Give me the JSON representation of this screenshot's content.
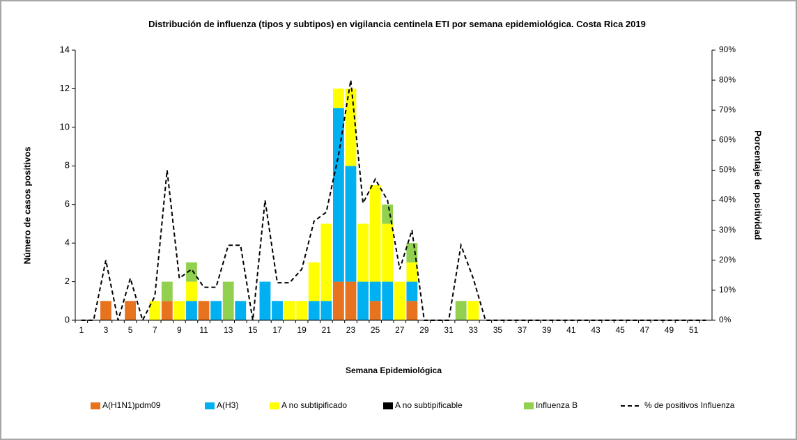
{
  "chart_data": {
    "type": "bar",
    "stacked": true,
    "title": "Distribución de influenza (tipos y subtipos) en vigilancia centinela ETI por semana epidemiológica. Costa Rica 2019",
    "x_label": "Semana Epidemiológica",
    "y_label": "Número de casos positivos",
    "y2_label": "Porcentaje de positividad",
    "categories": [
      1,
      null,
      3,
      null,
      5,
      null,
      7,
      null,
      9,
      null,
      11,
      null,
      13,
      null,
      15,
      null,
      17,
      null,
      19,
      null,
      21,
      null,
      23,
      null,
      25,
      null,
      27,
      null,
      29,
      null,
      31,
      null,
      33,
      null,
      35,
      null,
      37,
      null,
      39,
      null,
      41,
      null,
      43,
      null,
      45,
      null,
      47,
      null,
      49,
      null,
      51,
      null
    ],
    "ylim": [
      0,
      14
    ],
    "yticks": [
      0,
      2,
      4,
      6,
      8,
      10,
      12,
      14
    ],
    "y2lim": [
      0,
      90
    ],
    "y2ticks": [
      {
        "value": 0,
        "label": "0%"
      },
      {
        "value": 10,
        "label": "10%"
      },
      {
        "value": 20,
        "label": "20%"
      },
      {
        "value": 30,
        "label": "30%"
      },
      {
        "value": 40,
        "label": "40%"
      },
      {
        "value": 50,
        "label": "50%"
      },
      {
        "value": 60,
        "label": "60%"
      },
      {
        "value": 70,
        "label": "70%"
      },
      {
        "value": 80,
        "label": "80%"
      },
      {
        "value": 90,
        "label": "90%"
      }
    ],
    "legend": "bottom",
    "series": [
      {
        "name": "A(H1N1)pdm09",
        "color": "#E8731F",
        "values": [
          0,
          0,
          1,
          0,
          1,
          0,
          0,
          1,
          0,
          0,
          1,
          0,
          0,
          0,
          0,
          0,
          0,
          0,
          0,
          0,
          0,
          2,
          2,
          0,
          1,
          0,
          0,
          1,
          0,
          0,
          0,
          0,
          0,
          0,
          0,
          0,
          0,
          0,
          0,
          0,
          0,
          0,
          0,
          0,
          0,
          0,
          0,
          0,
          0,
          0,
          0,
          0
        ]
      },
      {
        "name": "A(H3)",
        "color": "#00B0F0",
        "values": [
          0,
          0,
          0,
          0,
          0,
          0,
          0,
          0,
          0,
          1,
          0,
          1,
          0,
          1,
          0,
          2,
          1,
          0,
          0,
          1,
          1,
          9,
          6,
          2,
          1,
          2,
          0,
          1,
          0,
          0,
          0,
          0,
          0,
          0,
          0,
          0,
          0,
          0,
          0,
          0,
          0,
          0,
          0,
          0,
          0,
          0,
          0,
          0,
          0,
          0,
          0,
          0
        ]
      },
      {
        "name": "A no subtipificado",
        "color": "#FFFF00",
        "values": [
          0,
          0,
          0,
          0,
          0,
          0,
          1,
          0,
          1,
          1,
          0,
          0,
          0,
          0,
          0,
          0,
          0,
          1,
          1,
          2,
          4,
          1,
          4,
          3,
          5,
          3,
          2,
          1,
          0,
          0,
          0,
          0,
          1,
          0,
          0,
          0,
          0,
          0,
          0,
          0,
          0,
          0,
          0,
          0,
          0,
          0,
          0,
          0,
          0,
          0,
          0,
          0
        ]
      },
      {
        "name": "A no subtipificable",
        "color": "#000000",
        "values": [
          0,
          0,
          0,
          0,
          0,
          0,
          0,
          0,
          0,
          0,
          0,
          0,
          0,
          0,
          0,
          0,
          0,
          0,
          0,
          0,
          0,
          0,
          0,
          0,
          0,
          0,
          0,
          0,
          0,
          0,
          0,
          0,
          0,
          0,
          0,
          0,
          0,
          0,
          0,
          0,
          0,
          0,
          0,
          0,
          0,
          0,
          0,
          0,
          0,
          0,
          0,
          0
        ]
      },
      {
        "name": "Influenza B",
        "color": "#92D050",
        "values": [
          0,
          0,
          0,
          0,
          0,
          0,
          0,
          1,
          0,
          1,
          0,
          0,
          2,
          0,
          0,
          0,
          0,
          0,
          0,
          0,
          0,
          0,
          0,
          0,
          0,
          1,
          0,
          1,
          0,
          0,
          0,
          1,
          0,
          0,
          0,
          0,
          0,
          0,
          0,
          0,
          0,
          0,
          0,
          0,
          0,
          0,
          0,
          0,
          0,
          0,
          0,
          0
        ]
      },
      {
        "name": "% de positivos Influenza",
        "type": "line",
        "axis": "y2",
        "dashed": true,
        "color": "#000000",
        "values": [
          0,
          0,
          20,
          0,
          14,
          0,
          8,
          50,
          14,
          17,
          11,
          11,
          25,
          25,
          0,
          40,
          12.5,
          12.5,
          17,
          33,
          36,
          55,
          80,
          39,
          47,
          40,
          17,
          30,
          0,
          0,
          0,
          25,
          14,
          0,
          0,
          0,
          0,
          0,
          0,
          0,
          0,
          0,
          0,
          0,
          0,
          0,
          0,
          0,
          0,
          0,
          0,
          0
        ]
      }
    ]
  }
}
